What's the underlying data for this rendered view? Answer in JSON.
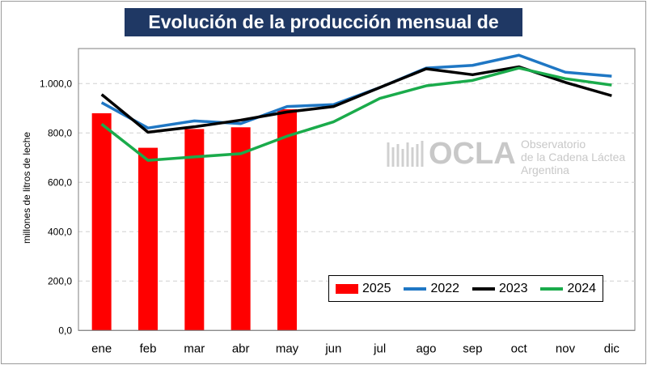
{
  "title": "Evolución de la producción mensual de leche",
  "watermark": {
    "brand": "OCLA",
    "line1": "Observatorio",
    "line2": "de la Cadena Láctea",
    "line3": "Argentina"
  },
  "chart_data": {
    "type": "bar+line",
    "title": "Evolución de la producción mensual de leche",
    "ylabel": "millones de litros de leche",
    "xlabel": "",
    "ylim": [
      0,
      1150
    ],
    "yticks": [
      "0,0",
      "200,0",
      "400,0",
      "600,0",
      "800,0",
      "1.000,0"
    ],
    "grid": "horizontal dashed",
    "legend": "bottom-right",
    "categories": [
      "ene",
      "feb",
      "mar",
      "abr",
      "may",
      "jun",
      "jul",
      "ago",
      "sep",
      "oct",
      "nov",
      "dic"
    ],
    "series": [
      {
        "name": "2025",
        "type": "bar",
        "color": "#ff0000",
        "values": [
          880,
          740,
          816,
          823,
          896,
          null,
          null,
          null,
          null,
          null,
          null,
          null
        ]
      },
      {
        "name": "2022",
        "type": "line",
        "color": "#1f77c4",
        "values": [
          923,
          820,
          849,
          838,
          907,
          915,
          984,
          1063,
          1074,
          1115,
          1046,
          1030
        ]
      },
      {
        "name": "2023",
        "type": "line",
        "color": "#000000",
        "values": [
          956,
          803,
          825,
          852,
          885,
          907,
          984,
          1060,
          1036,
          1068,
          1005,
          951
        ]
      },
      {
        "name": "2024",
        "type": "line",
        "color": "#1aab4b",
        "values": [
          836,
          689,
          703,
          716,
          787,
          845,
          940,
          991,
          1013,
          1063,
          1020,
          994
        ]
      }
    ]
  }
}
